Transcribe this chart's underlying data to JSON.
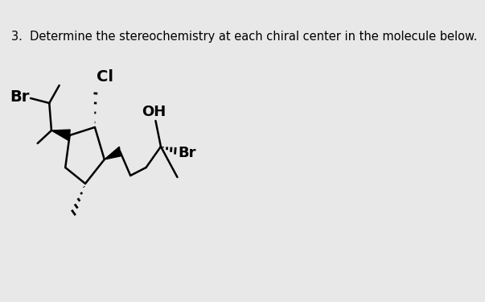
{
  "title_text": "3.  Determine the stereochemistry at each chiral center in the molecule below.",
  "title_fontsize": 10.5,
  "bg_color": "#e8e8e8",
  "text_color": "#000000",
  "line_color": "#000000",
  "line_width": 1.8,
  "labels": {
    "Br_left": "Br",
    "Cl": "Cl",
    "OH": "OH",
    "Br_right": "Br"
  }
}
